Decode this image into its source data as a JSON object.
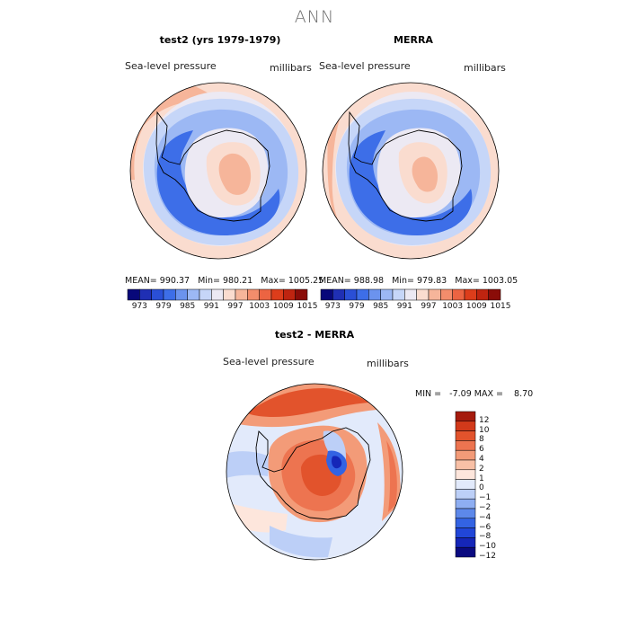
{
  "title": "ANN",
  "palette": {
    "levels_abs": [
      "#08087a",
      "#1f2fb4",
      "#2a4fd6",
      "#3d6ee8",
      "#6b93ee",
      "#9cb8f4",
      "#c6d6f8",
      "#ece9f3",
      "#fadccf",
      "#f6b59a",
      "#f38d6c",
      "#ec6442",
      "#dd3d1b",
      "#bf2410",
      "#8a0c08"
    ],
    "levels_diff": [
      "#0a0a80",
      "#1526b8",
      "#2146d8",
      "#3363e3",
      "#5d88ea",
      "#8eaef2",
      "#bccff7",
      "#e2eafb",
      "#fde6dc",
      "#f8c0a6",
      "#f39b78",
      "#ed7450",
      "#e2532c",
      "#d2391a",
      "#a51b0d"
    ]
  },
  "panels": {
    "model": {
      "title": "test2 (yrs 1979-1979)",
      "variable": "Sea-level pressure",
      "units": "millibars",
      "mean": "990.37",
      "min": "980.21",
      "max": "1005.25"
    },
    "obs": {
      "title": "MERRA",
      "variable": "Sea-level pressure",
      "units": "millibars",
      "mean": "988.98",
      "min": "979.83",
      "max": "1003.05"
    },
    "diff": {
      "title": "test2 - MERRA",
      "variable": "Sea-level pressure",
      "units": "millibars",
      "min": "-7.09",
      "max": "8.70"
    }
  },
  "chart_data": [
    {
      "type": "heatmap",
      "projection": "south-polar-stereographic",
      "title": "test2 (yrs 1979-1979)",
      "variable": "Sea-level pressure",
      "units": "millibars",
      "stats": {
        "mean": 990.37,
        "min": 980.21,
        "max": 1005.25
      },
      "colorbar_ticks": [
        "973",
        "979",
        "985",
        "991",
        "997",
        "1003",
        "1009",
        "1015"
      ]
    },
    {
      "type": "heatmap",
      "projection": "south-polar-stereographic",
      "title": "MERRA",
      "variable": "Sea-level pressure",
      "units": "millibars",
      "stats": {
        "mean": 988.98,
        "min": 979.83,
        "max": 1003.05
      },
      "colorbar_ticks": [
        "973",
        "979",
        "985",
        "991",
        "997",
        "1003",
        "1009",
        "1015"
      ]
    },
    {
      "type": "heatmap",
      "projection": "south-polar-stereographic",
      "title": "test2 - MERRA",
      "variable": "Sea-level pressure",
      "units": "millibars",
      "stats": {
        "min": -7.09,
        "max": 8.7
      },
      "colorbar_ticks": [
        "12",
        "10",
        "8",
        "6",
        "4",
        "2",
        "1",
        "0",
        "−1",
        "−2",
        "−4",
        "−6",
        "−8",
        "−10",
        "−12"
      ]
    }
  ]
}
